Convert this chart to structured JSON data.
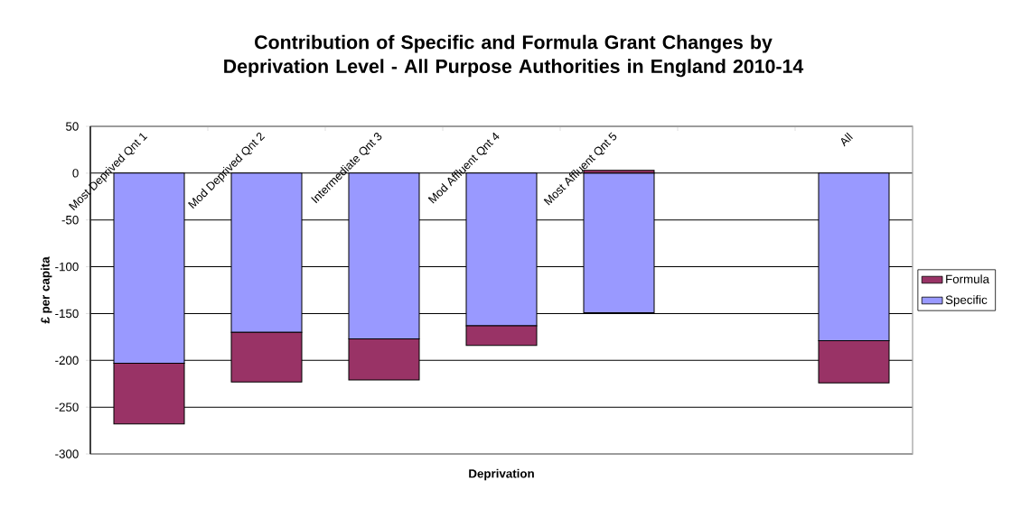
{
  "chart_data": {
    "type": "bar",
    "stacked": true,
    "title": "Contribution of Specific and Formula Grant Changes by Deprivation Level - All Purpose Authorities in England 2010-14",
    "xlabel": "Deprivation",
    "ylabel": "£ per capita",
    "categories": [
      "Most Deprived Qnt 1",
      "Mod Deprived Qnt 2",
      "Intermediate Qnt 3",
      "Mod Affluent Qnt 4",
      "Most Affluent Qnt 5",
      null,
      "All"
    ],
    "series": [
      {
        "name": "Specific",
        "color": "#9999ff",
        "values": [
          -203,
          -170,
          -177,
          -163,
          -149,
          null,
          -179
        ]
      },
      {
        "name": "Formula",
        "color": "#993366",
        "values": [
          -65,
          -53,
          -44,
          -21,
          3,
          null,
          -45
        ]
      }
    ],
    "ylim": [
      -300,
      50
    ],
    "yticks": [
      -300,
      -250,
      -200,
      -150,
      -100,
      -50,
      0,
      50
    ],
    "grid": "y",
    "legend": "right"
  }
}
